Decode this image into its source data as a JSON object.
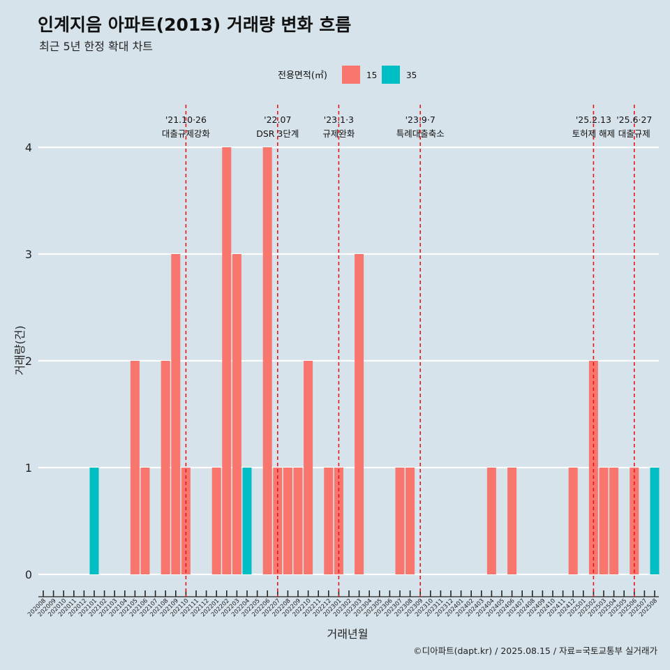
{
  "title": "인계지음 아파트(2013) 거래량 변화 흐름",
  "subtitle": "최근 5년 한정 확대 차트",
  "caption": "©디아파트(dapt.kr) / 2025.08.15 / 자료=국토교통부 실거래가",
  "chart_data": {
    "type": "bar",
    "xlabel": "거래년월",
    "ylabel": "거래량(건)",
    "ylim": [
      0,
      4
    ],
    "yticks": [
      0,
      1,
      2,
      3,
      4
    ],
    "legend": {
      "title": "전용면적(㎡)",
      "position": "top",
      "labels": [
        "15",
        "35"
      ]
    },
    "colors": {
      "15": "#f8766d",
      "35": "#00bfc4"
    },
    "categories": [
      "202008",
      "202009",
      "202010",
      "202011",
      "202012",
      "202101",
      "202102",
      "202103",
      "202104",
      "202105",
      "202106",
      "202107",
      "202108",
      "202109",
      "202110",
      "202111",
      "202112",
      "202201",
      "202202",
      "202203",
      "202204",
      "202205",
      "202206",
      "202207",
      "202208",
      "202209",
      "202210",
      "202211",
      "202212",
      "202301",
      "202302",
      "202303",
      "202304",
      "202305",
      "202306",
      "202307",
      "202308",
      "202309",
      "202310",
      "202311",
      "202312",
      "202401",
      "202402",
      "202403",
      "202404",
      "202405",
      "202406",
      "202407",
      "202408",
      "202409",
      "202410",
      "202411",
      "202412",
      "202501",
      "202502",
      "202503",
      "202504",
      "202505",
      "202506",
      "202507",
      "202508"
    ],
    "series": [
      {
        "name": "15",
        "values": [
          0,
          0,
          0,
          0,
          0,
          0,
          0,
          0,
          0,
          2,
          1,
          0,
          2,
          3,
          1,
          0,
          0,
          1,
          4,
          3,
          0,
          0,
          4,
          1,
          1,
          1,
          2,
          0,
          1,
          1,
          0,
          3,
          0,
          0,
          0,
          1,
          1,
          0,
          0,
          0,
          0,
          0,
          0,
          0,
          1,
          0,
          1,
          0,
          0,
          0,
          0,
          0,
          1,
          0,
          2,
          1,
          1,
          0,
          1,
          0,
          0
        ]
      },
      {
        "name": "35",
        "values": [
          0,
          0,
          0,
          0,
          0,
          1,
          0,
          0,
          0,
          0,
          0,
          0,
          0,
          0,
          0,
          0,
          0,
          0,
          0,
          0,
          1,
          0,
          0,
          0,
          0,
          0,
          0,
          0,
          0,
          0,
          0,
          0,
          0,
          0,
          0,
          0,
          0,
          0,
          0,
          0,
          0,
          0,
          0,
          0,
          0,
          0,
          0,
          0,
          0,
          0,
          0,
          0,
          0,
          0,
          0,
          0,
          0,
          0,
          0,
          0,
          1
        ]
      }
    ],
    "annotations": [
      {
        "month": "202110",
        "date": "'21.10·26",
        "label": "대출규제강화"
      },
      {
        "month": "202207",
        "date": "'22.07",
        "label": "DSR 3단계"
      },
      {
        "month": "202301",
        "date": "'23.1·3",
        "label": "규제완화"
      },
      {
        "month": "202309",
        "date": "'23.9·7",
        "label": "특례대출축소"
      },
      {
        "month": "202502",
        "date": "'25.2.13",
        "label": "토허제 해제"
      },
      {
        "month": "202506",
        "date": "'25.6·27",
        "label": "대출규제"
      }
    ]
  }
}
